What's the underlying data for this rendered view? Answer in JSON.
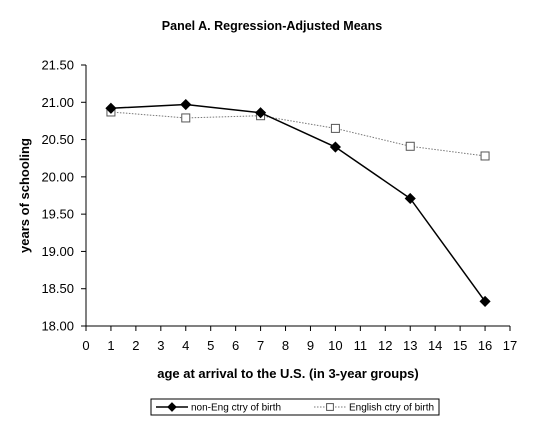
{
  "chart_data": {
    "type": "line",
    "title": "Panel A.  Regression-Adjusted Means",
    "xlabel": "age at arrival to the U.S. (in 3-year groups)",
    "ylabel": "years of schooling",
    "xlim": [
      0,
      17
    ],
    "ylim": [
      18.0,
      21.5
    ],
    "x_ticks": [
      0,
      1,
      2,
      3,
      4,
      5,
      6,
      7,
      8,
      9,
      10,
      11,
      12,
      13,
      14,
      15,
      16,
      17
    ],
    "y_ticks": [
      18.0,
      18.5,
      19.0,
      19.5,
      20.0,
      20.5,
      21.0,
      21.5
    ],
    "y_tick_labels": [
      "18.00",
      "18.50",
      "19.00",
      "19.50",
      "20.00",
      "20.50",
      "21.00",
      "21.50"
    ],
    "grid": false,
    "legend_position": "bottom",
    "series": [
      {
        "name": "non-Eng ctry of birth",
        "marker": "diamond-filled",
        "line_style": "solid",
        "color": "#000000",
        "x": [
          1,
          4,
          7,
          10,
          13,
          16
        ],
        "values": [
          20.92,
          20.97,
          20.86,
          20.4,
          19.71,
          18.33
        ]
      },
      {
        "name": "English ctry of birth",
        "marker": "square-open",
        "line_style": "dotted",
        "color": "#666666",
        "x": [
          1,
          4,
          7,
          10,
          13,
          16
        ],
        "values": [
          20.87,
          20.79,
          20.82,
          20.65,
          20.41,
          20.28
        ]
      }
    ]
  }
}
